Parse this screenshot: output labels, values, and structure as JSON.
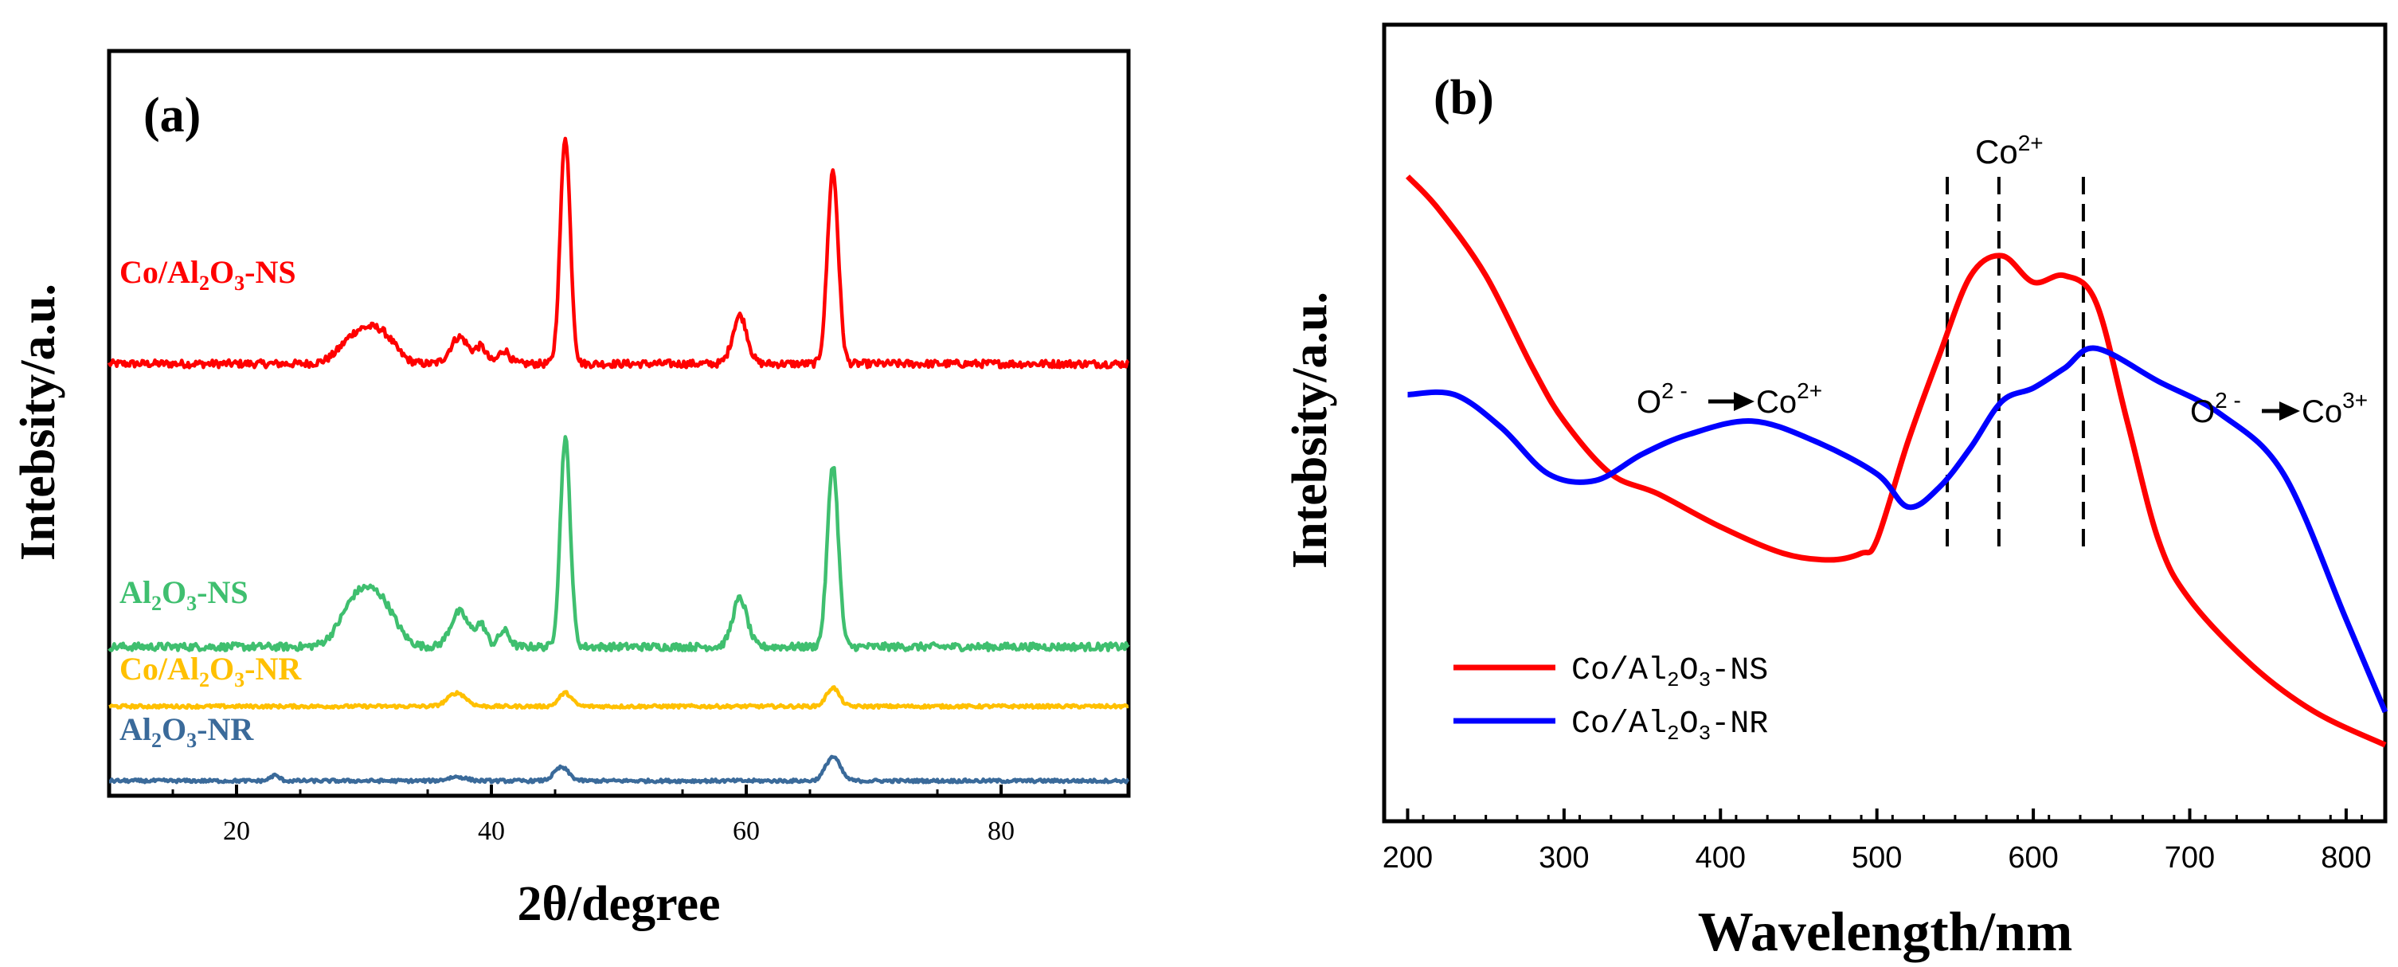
{
  "chart_data": [
    {
      "type": "line",
      "panel": "(a)",
      "title": "",
      "xlabel": "2θ/degree",
      "ylabel": "Intebsity/a.u.",
      "xlim": [
        10,
        90
      ],
      "x_ticks": [
        20,
        40,
        60,
        80
      ],
      "x_tick_labels": [
        "20",
        "40",
        "60",
        "80"
      ],
      "grid": false,
      "legend": "inline labels",
      "series": [
        {
          "name": "Co/Al2O3-NS",
          "label": {
            "base": "Co/Al",
            "sub1": "2",
            "mid": "O",
            "sub2": "3",
            "tail": "-NS"
          },
          "color": "#ff0000",
          "offset": 0.58,
          "amp": 0.36,
          "peaks": [
            [
              29.5,
              0.11,
              1.8
            ],
            [
              31.5,
              0.09,
              1.5
            ],
            [
              37.5,
              0.1,
              1.0
            ],
            [
              39.2,
              0.06,
              0.6
            ],
            [
              41.0,
              0.05,
              0.6
            ],
            [
              45.8,
              0.85,
              0.55
            ],
            [
              59.5,
              0.18,
              0.8
            ],
            [
              66.8,
              0.72,
              0.6
            ]
          ]
        },
        {
          "name": "Al2O3-NS",
          "label": {
            "base": "Al",
            "sub1": "2",
            "mid": "O",
            "sub2": "3",
            "tail": "-NS"
          },
          "color": "#3fbf6f",
          "offset": 0.2,
          "amp": 0.36,
          "peaks": [
            [
              29.5,
              0.18,
              1.8
            ],
            [
              31.5,
              0.13,
              1.6
            ],
            [
              37.5,
              0.13,
              1.0
            ],
            [
              39.2,
              0.08,
              0.6
            ],
            [
              41.0,
              0.06,
              0.6
            ],
            [
              45.8,
              0.78,
              0.55
            ],
            [
              59.5,
              0.18,
              0.8
            ],
            [
              66.8,
              0.68,
              0.6
            ]
          ]
        },
        {
          "name": "Co/Al2O3-NR",
          "label": {
            "base": "Co/Al",
            "sub1": "2",
            "mid": "O",
            "sub2": "3",
            "tail": "-NR"
          },
          "color": "#ffc000",
          "offset": 0.12,
          "amp": 0.36,
          "peaks": [
            [
              37.3,
              0.05,
              1.0
            ],
            [
              45.8,
              0.05,
              0.7
            ],
            [
              66.8,
              0.07,
              0.7
            ]
          ]
        },
        {
          "name": "Al2O3-NR",
          "label": {
            "base": "Al",
            "sub1": "2",
            "mid": "O",
            "sub2": "3",
            "tail": "-NR"
          },
          "color": "#3a6a9a",
          "offset": 0.02,
          "amp": 0.36,
          "peaks": [
            [
              23.0,
              0.02,
              0.5
            ],
            [
              37.3,
              0.015,
              1.0
            ],
            [
              45.5,
              0.05,
              0.8
            ],
            [
              66.8,
              0.09,
              0.8
            ]
          ]
        }
      ]
    },
    {
      "type": "line",
      "panel": "(b)",
      "title": "",
      "xlabel": "Wavelength/nm",
      "ylabel": "Intebsity/a.u.",
      "xlim": [
        185,
        825
      ],
      "ylim": [
        0,
        1
      ],
      "x_ticks": [
        200,
        300,
        400,
        500,
        600,
        700,
        800
      ],
      "x_tick_labels": [
        "200",
        "300",
        "400",
        "500",
        "600",
        "700",
        "800"
      ],
      "grid": false,
      "legend": "bottom-left",
      "series": [
        {
          "name": "Co/Al2O3-NS",
          "label": {
            "base": "Co/Al",
            "sub1": "2",
            "mid": "O",
            "sub2": "3",
            "tail": "-NS"
          },
          "color": "#ff0000",
          "x": [
            200,
            220,
            250,
            280,
            300,
            330,
            360,
            400,
            440,
            470,
            490,
            500,
            520,
            540,
            560,
            580,
            600,
            620,
            640,
            660,
            680,
            700,
            740,
            780,
            825
          ],
          "y": [
            0.95,
            0.9,
            0.8,
            0.66,
            0.58,
            0.5,
            0.47,
            0.42,
            0.38,
            0.37,
            0.38,
            0.4,
            0.55,
            0.68,
            0.8,
            0.83,
            0.79,
            0.8,
            0.76,
            0.58,
            0.4,
            0.31,
            0.21,
            0.14,
            0.09
          ]
        },
        {
          "name": "Co/Al2O3-NR",
          "label": {
            "base": "Co/Al",
            "sub1": "2",
            "mid": "O",
            "sub2": "3",
            "tail": "-NR"
          },
          "color": "#0000ff",
          "x": [
            200,
            230,
            260,
            290,
            320,
            350,
            380,
            420,
            460,
            500,
            520,
            540,
            560,
            580,
            600,
            620,
            640,
            680,
            720,
            760,
            800,
            825
          ],
          "y": [
            0.62,
            0.62,
            0.57,
            0.5,
            0.49,
            0.53,
            0.56,
            0.58,
            0.55,
            0.5,
            0.45,
            0.48,
            0.54,
            0.61,
            0.63,
            0.66,
            0.69,
            0.64,
            0.59,
            0.5,
            0.28,
            0.14
          ]
        }
      ],
      "annotations": {
        "co2_label": {
          "base": "Co",
          "sup": "2+"
        },
        "o_co2": {
          "pre": "O",
          "presup": "2 -",
          "post": "Co",
          "postsup": "2+"
        },
        "o_co3": {
          "pre": "O",
          "presup": "2 -",
          "post": "Co",
          "postsup": "3+"
        },
        "dashed_lines_x": [
          545,
          578,
          632
        ]
      }
    }
  ]
}
